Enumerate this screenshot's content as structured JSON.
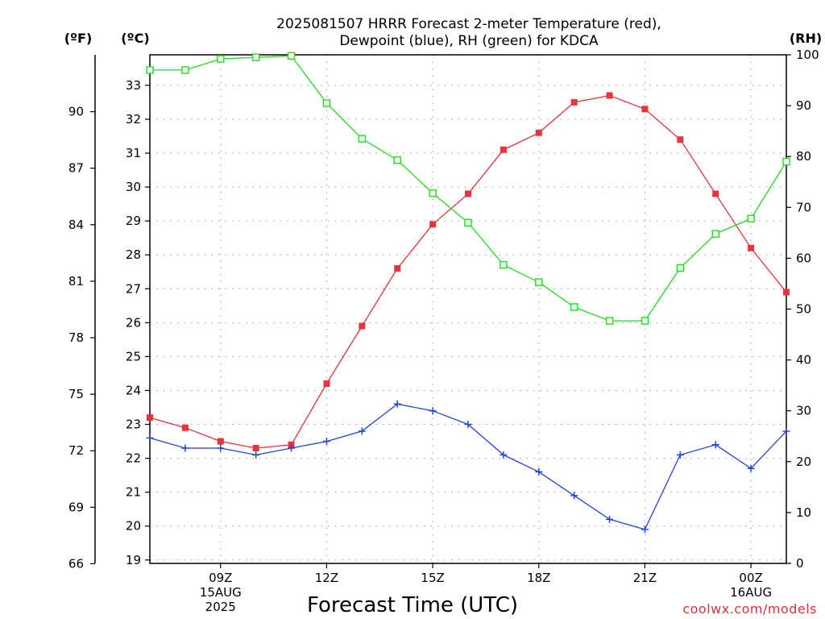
{
  "chart_data": {
    "type": "line",
    "title_lines": [
      "2025081507 HRRR Forecast 2-meter Temperature (red),",
      "Dewpoint (blue), RH (green) for KDCA"
    ],
    "xlabel": "Forecast Time (UTC)",
    "credit": "coolwx.com/models",
    "units": {
      "fahrenheit": "(ºF)",
      "celsius": "(ºC)",
      "rh": "(RH)"
    },
    "x_hours": [
      7,
      8,
      9,
      10,
      11,
      12,
      13,
      14,
      15,
      16,
      17,
      18,
      19,
      20,
      21,
      22,
      23,
      24,
      25
    ],
    "x_range": [
      7,
      25
    ],
    "x_ticks": [
      {
        "hour": 9,
        "lines": [
          "09Z",
          "15AUG",
          "2025"
        ]
      },
      {
        "hour": 12,
        "lines": [
          "12Z"
        ]
      },
      {
        "hour": 15,
        "lines": [
          "15Z"
        ]
      },
      {
        "hour": 18,
        "lines": [
          "18Z"
        ]
      },
      {
        "hour": 21,
        "lines": [
          "21Z"
        ]
      },
      {
        "hour": 24,
        "lines": [
          "00Z",
          "16AUG"
        ]
      }
    ],
    "celsius_axis": {
      "range": [
        18.9,
        33.9
      ],
      "ticks": [
        19,
        20,
        21,
        22,
        23,
        24,
        25,
        26,
        27,
        28,
        29,
        30,
        31,
        32,
        33
      ]
    },
    "fahrenheit_axis": {
      "ticks": [
        66,
        69,
        72,
        75,
        78,
        81,
        84,
        87,
        90
      ]
    },
    "rh_axis": {
      "range": [
        0,
        100
      ],
      "ticks": [
        0,
        10,
        20,
        30,
        40,
        50,
        60,
        70,
        80,
        90,
        100
      ]
    },
    "series": [
      {
        "name": "Temperature",
        "units": "C",
        "color": "#e8333c",
        "marker": "filled-square",
        "values": [
          23.2,
          22.9,
          22.5,
          22.3,
          22.4,
          24.2,
          25.9,
          27.6,
          28.9,
          29.8,
          31.1,
          31.6,
          32.5,
          32.7,
          32.3,
          31.4,
          29.8,
          28.2,
          26.9
        ]
      },
      {
        "name": "Dewpoint",
        "units": "C",
        "color": "#2244dd",
        "marker": "plus",
        "values": [
          22.6,
          22.3,
          22.3,
          22.1,
          22.3,
          22.5,
          22.8,
          23.6,
          23.4,
          23.0,
          22.1,
          21.6,
          20.9,
          20.2,
          19.9,
          22.1,
          22.4,
          21.7,
          22.8
        ]
      },
      {
        "name": "RH",
        "units": "%",
        "color": "#22dd22",
        "marker": "open-square",
        "values": [
          97,
          97,
          99.2,
          99.5,
          99.8,
          90.5,
          83.5,
          79.3,
          72.8,
          67,
          58.7,
          55.3,
          50.4,
          47.7,
          47.7,
          58.1,
          64.8,
          67.8,
          79
        ]
      }
    ]
  }
}
